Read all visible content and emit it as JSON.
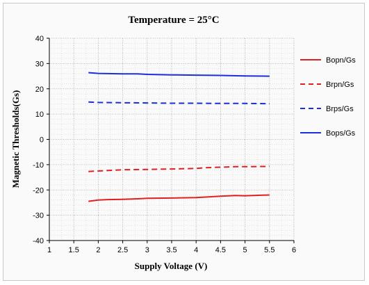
{
  "chart_data": {
    "type": "line",
    "title": "Temperature = 25°C",
    "xlabel": "Supply Voltage (V)",
    "ylabel": "Magnetic Thresholds(Gs)",
    "xlim": [
      1,
      6
    ],
    "ylim": [
      -40,
      40
    ],
    "xticks": [
      "1",
      "1.5",
      "2",
      "2.5",
      "3",
      "3.5",
      "4",
      "4.5",
      "5",
      "5.5",
      "6"
    ],
    "yticks": [
      "-40",
      "-30",
      "-20",
      "-10",
      "0",
      "10",
      "20",
      "30",
      "40"
    ],
    "grid": true,
    "legend_position": "right",
    "series": [
      {
        "name": "Bopn/Gs",
        "color": "#e02020",
        "style": "solid",
        "x": [
          1.8,
          2.0,
          2.2,
          2.5,
          2.8,
          3.0,
          3.5,
          4.0,
          4.5,
          4.8,
          5.0,
          5.5
        ],
        "y": [
          -24.5,
          -24.0,
          -23.8,
          -23.7,
          -23.5,
          -23.3,
          -23.2,
          -23.0,
          -22.5,
          -22.2,
          -22.3,
          -22.0
        ]
      },
      {
        "name": "Brpn/Gs",
        "color": "#e02020",
        "style": "dashed",
        "x": [
          1.8,
          2.0,
          2.3,
          2.5,
          3.0,
          3.5,
          4.0,
          4.2,
          4.5,
          4.8,
          5.0,
          5.5
        ],
        "y": [
          -12.7,
          -12.5,
          -12.2,
          -12.0,
          -11.9,
          -11.7,
          -11.5,
          -11.2,
          -11.0,
          -10.8,
          -10.8,
          -10.7
        ]
      },
      {
        "name": "Brps/Gs",
        "color": "#1c2ed8",
        "style": "dashed",
        "x": [
          1.8,
          2.0,
          2.5,
          3.0,
          3.5,
          4.0,
          4.5,
          5.0,
          5.5
        ],
        "y": [
          14.8,
          14.6,
          14.5,
          14.4,
          14.3,
          14.3,
          14.2,
          14.2,
          14.1
        ]
      },
      {
        "name": "Bops/Gs",
        "color": "#1c2ed8",
        "style": "solid",
        "x": [
          1.8,
          2.0,
          2.2,
          2.5,
          2.8,
          3.0,
          3.5,
          4.0,
          4.5,
          5.0,
          5.5
        ],
        "y": [
          26.4,
          26.1,
          26.0,
          25.9,
          25.9,
          25.7,
          25.5,
          25.4,
          25.3,
          25.1,
          25.0
        ]
      }
    ]
  }
}
